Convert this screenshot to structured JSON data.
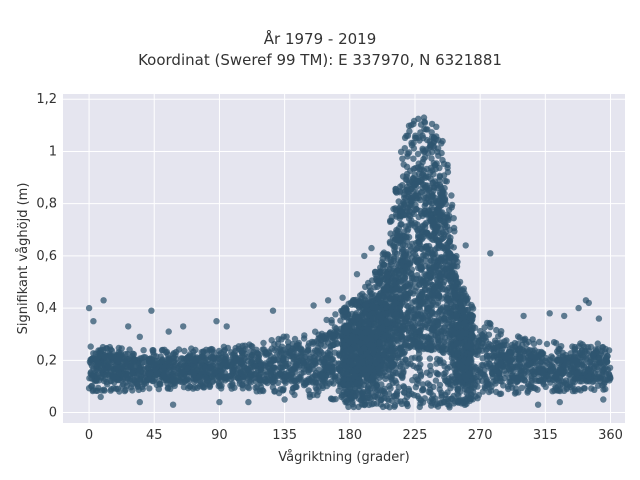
{
  "chart_data": {
    "type": "scatter",
    "title_line1": "År 1979 - 2019",
    "title_line2": "Koordinat (Sweref 99 TM): E 337970, N 6321881",
    "xlabel": "Vågriktning (grader)",
    "ylabel": "Signifikant våghöjd (m)",
    "xlim": [
      -18,
      370
    ],
    "ylim": [
      -0.04,
      1.22
    ],
    "x_ticks": [
      0,
      45,
      90,
      135,
      180,
      225,
      270,
      315,
      360
    ],
    "x_tick_labels": [
      "0",
      "45",
      "90",
      "135",
      "180",
      "225",
      "270",
      "315",
      "360"
    ],
    "y_ticks": [
      0,
      0.2,
      0.4,
      0.6,
      0.8,
      1.0,
      1.2
    ],
    "y_tick_labels": [
      "0",
      "0,2",
      "0,4",
      "0,6",
      "0,8",
      "1",
      "1,2"
    ],
    "grid": true,
    "marker_color": "#2f5670",
    "background_color": "#e5e5ef",
    "series_envelope": {
      "x": [
        0,
        20,
        45,
        90,
        120,
        150,
        170,
        180,
        190,
        200,
        205,
        210,
        215,
        220,
        225,
        230,
        235,
        240,
        245,
        250,
        255,
        260,
        270,
        290,
        315,
        340,
        360
      ],
      "y_low": [
        0.08,
        0.08,
        0.09,
        0.09,
        0.08,
        0.06,
        0.04,
        0.02,
        0.02,
        0.02,
        0.02,
        0.02,
        0.02,
        0.02,
        0.02,
        0.02,
        0.02,
        0.02,
        0.02,
        0.02,
        0.02,
        0.03,
        0.05,
        0.07,
        0.08,
        0.08,
        0.09
      ],
      "y_high": [
        0.26,
        0.25,
        0.24,
        0.25,
        0.27,
        0.32,
        0.38,
        0.42,
        0.48,
        0.56,
        0.65,
        0.8,
        1.0,
        1.1,
        1.15,
        1.14,
        1.12,
        1.1,
        1.05,
        0.85,
        0.55,
        0.45,
        0.37,
        0.3,
        0.27,
        0.27,
        0.26
      ]
    },
    "outliers": [
      {
        "x": 0,
        "y": 0.4
      },
      {
        "x": 10,
        "y": 0.43
      },
      {
        "x": 3,
        "y": 0.35
      },
      {
        "x": 27,
        "y": 0.33
      },
      {
        "x": 35,
        "y": 0.29
      },
      {
        "x": 43,
        "y": 0.39
      },
      {
        "x": 55,
        "y": 0.31
      },
      {
        "x": 65,
        "y": 0.33
      },
      {
        "x": 88,
        "y": 0.35
      },
      {
        "x": 95,
        "y": 0.33
      },
      {
        "x": 127,
        "y": 0.39
      },
      {
        "x": 155,
        "y": 0.41
      },
      {
        "x": 165,
        "y": 0.43
      },
      {
        "x": 175,
        "y": 0.44
      },
      {
        "x": 185,
        "y": 0.53
      },
      {
        "x": 190,
        "y": 0.6
      },
      {
        "x": 195,
        "y": 0.63
      },
      {
        "x": 260,
        "y": 0.64
      },
      {
        "x": 277,
        "y": 0.61
      },
      {
        "x": 300,
        "y": 0.37
      },
      {
        "x": 318,
        "y": 0.38
      },
      {
        "x": 328,
        "y": 0.37
      },
      {
        "x": 338,
        "y": 0.4
      },
      {
        "x": 343,
        "y": 0.43
      },
      {
        "x": 345,
        "y": 0.42
      },
      {
        "x": 352,
        "y": 0.36
      },
      {
        "x": 35,
        "y": 0.04
      },
      {
        "x": 58,
        "y": 0.03
      },
      {
        "x": 90,
        "y": 0.04
      },
      {
        "x": 110,
        "y": 0.04
      },
      {
        "x": 135,
        "y": 0.05
      },
      {
        "x": 310,
        "y": 0.03
      },
      {
        "x": 325,
        "y": 0.04
      },
      {
        "x": 8,
        "y": 0.06
      },
      {
        "x": 355,
        "y": 0.05
      }
    ]
  }
}
